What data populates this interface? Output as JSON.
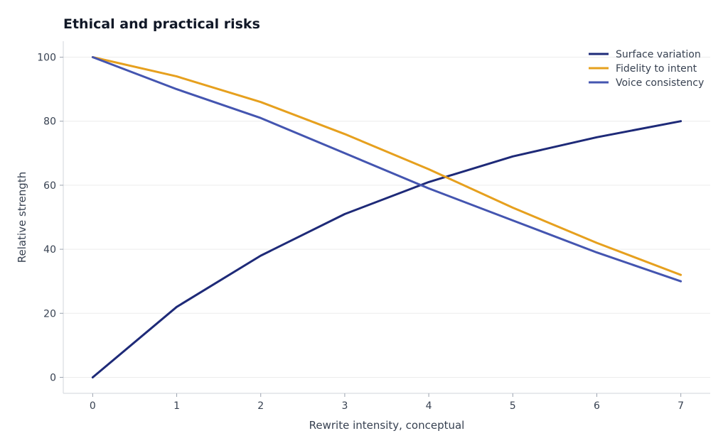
{
  "chart_data": {
    "type": "line",
    "title": "Ethical and practical risks",
    "xlabel": "Rewrite intensity, conceptual",
    "ylabel": "Relative strength",
    "x": [
      0,
      1,
      2,
      3,
      4,
      5,
      6,
      7
    ],
    "xlim": [
      -0.35,
      7.35
    ],
    "ylim": [
      -5,
      105
    ],
    "xticks": [
      0,
      1,
      2,
      3,
      4,
      5,
      6,
      7
    ],
    "yticks": [
      0,
      20,
      40,
      60,
      80,
      100
    ],
    "grid": "horizontal",
    "legend_position": "top-right",
    "series": [
      {
        "name": "Surface variation",
        "color": "#1e2a78",
        "values": [
          0,
          22,
          38,
          51,
          61,
          69,
          75,
          80
        ]
      },
      {
        "name": "Fidelity to intent",
        "color": "#e6a01e",
        "values": [
          100,
          94,
          86,
          76,
          65,
          53,
          42,
          32
        ]
      },
      {
        "name": "Voice consistency",
        "color": "#4455b0",
        "values": [
          100,
          90,
          81,
          70,
          59,
          49,
          39,
          30
        ]
      }
    ]
  }
}
